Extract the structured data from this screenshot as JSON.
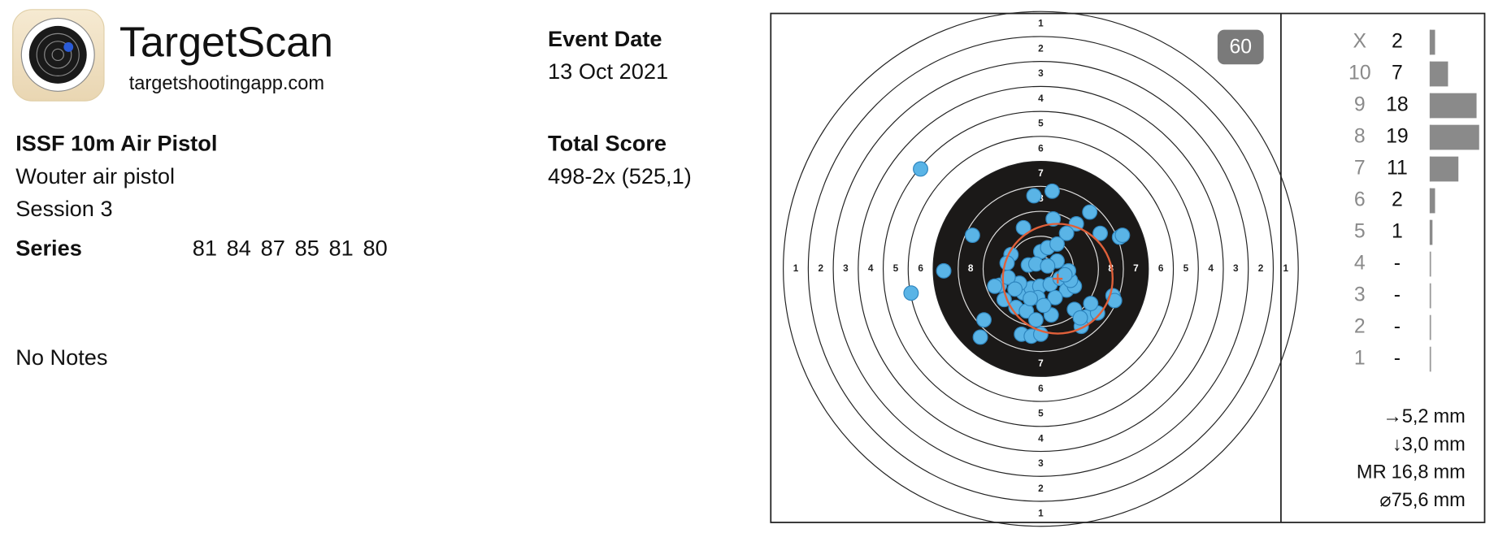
{
  "header": {
    "app_name": "TargetScan",
    "website": "targetshootingapp.com"
  },
  "session": {
    "discipline": "ISSF 10m Air Pistol",
    "equipment": "Wouter air pistol",
    "session": "Session 3",
    "series_label": "Series",
    "series": [
      81,
      84,
      87,
      85,
      81,
      80
    ],
    "notes": "No Notes"
  },
  "event": {
    "date_label": "Event Date",
    "date": "13 Oct 2021",
    "score_label": "Total Score",
    "score": "498-2x (525,1)"
  },
  "target": {
    "shot_count": "60",
    "ring_labels": [
      "1",
      "2",
      "3",
      "4",
      "5",
      "6",
      "7",
      "8"
    ],
    "shots": [
      [
        -36.8,
        30.6
      ],
      [
        -39.7,
        -7.4
      ],
      [
        -2.1,
        22.4
      ],
      [
        3.5,
        23.8
      ],
      [
        15.0,
        17.4
      ],
      [
        3.8,
        15.3
      ],
      [
        10.9,
        13.8
      ],
      [
        7.9,
        10.9
      ],
      [
        18.2,
        10.9
      ],
      [
        24.1,
        9.7
      ],
      [
        25.0,
        10.3
      ],
      [
        -20.9,
        10.3
      ],
      [
        -5.3,
        12.6
      ],
      [
        0,
        5.3
      ],
      [
        2.1,
        6.5
      ],
      [
        5.0,
        7.6
      ],
      [
        -9.1,
        4.4
      ],
      [
        -10.3,
        1.8
      ],
      [
        -3.8,
        1.2
      ],
      [
        -1.5,
        1.5
      ],
      [
        5.0,
        2.4
      ],
      [
        -12.6,
        -5.0
      ],
      [
        -14.1,
        -5.3
      ],
      [
        -11.2,
        -9.4
      ],
      [
        -7.6,
        -11.8
      ],
      [
        -5.3,
        -7.4
      ],
      [
        -2.9,
        -5.9
      ],
      [
        -0.3,
        -5.3
      ],
      [
        2.9,
        -4.7
      ],
      [
        5.9,
        -2.9
      ],
      [
        7.9,
        -6.5
      ],
      [
        10.3,
        -5.3
      ],
      [
        9.1,
        -3.5
      ],
      [
        4.4,
        -8.8
      ],
      [
        -0.9,
        -8.8
      ],
      [
        -4.4,
        -12.9
      ],
      [
        -1.5,
        -15.6
      ],
      [
        3.2,
        -14.1
      ],
      [
        10.3,
        -12.4
      ],
      [
        13.8,
        -14.7
      ],
      [
        12.4,
        -17.6
      ],
      [
        17.4,
        -13.5
      ],
      [
        15.3,
        -10.6
      ],
      [
        22.1,
        -8.2
      ],
      [
        22.6,
        -9.7
      ],
      [
        -5.9,
        -20.0
      ],
      [
        -2.9,
        -20.6
      ],
      [
        0,
        -20.0
      ],
      [
        -17.4,
        -15.6
      ],
      [
        -18.5,
        -20.9
      ],
      [
        8.5,
        -0.6
      ],
      [
        7.4,
        -1.8
      ],
      [
        -29.7,
        -0.6
      ],
      [
        2.1,
        0.9
      ],
      [
        -6.5,
        -4.4
      ],
      [
        -10.0,
        -2.6
      ],
      [
        -3.2,
        -9.1
      ],
      [
        12.1,
        -15.0
      ],
      [
        0.9,
        -11.2
      ],
      [
        -7.9,
        -6.2
      ]
    ]
  },
  "distribution": [
    {
      "ring": "X",
      "count": 2
    },
    {
      "ring": "10",
      "count": 7
    },
    {
      "ring": "9",
      "count": 18
    },
    {
      "ring": "8",
      "count": 19
    },
    {
      "ring": "7",
      "count": 11
    },
    {
      "ring": "6",
      "count": 2
    },
    {
      "ring": "5",
      "count": 1
    },
    {
      "ring": "4",
      "count": "-"
    },
    {
      "ring": "3",
      "count": "-"
    },
    {
      "ring": "2",
      "count": "-"
    },
    {
      "ring": "1",
      "count": "-"
    }
  ],
  "stats": [
    {
      "symbol": "→",
      "value": "5,2",
      "unit": "mm"
    },
    {
      "symbol": "↓",
      "value": "3,0",
      "unit": "mm"
    },
    {
      "symbol": "MR",
      "value": "16,8",
      "unit": "mm"
    },
    {
      "symbol": "⌀",
      "value": "75,6",
      "unit": "mm"
    }
  ]
}
